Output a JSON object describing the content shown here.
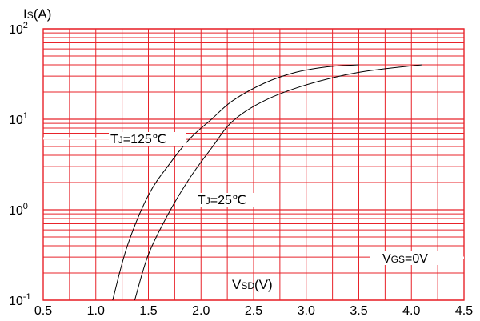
{
  "chart_data": {
    "type": "line",
    "xlabel": {
      "main": "V",
      "sub": "SD",
      "unit": "(V)"
    },
    "ylabel": {
      "main": "I",
      "sub": "S",
      "unit": "(A)"
    },
    "xlim": [
      0.5,
      4.5
    ],
    "ylim": [
      0.1,
      100
    ],
    "yscale": "log",
    "x_ticks": [
      "0.5",
      "1.0",
      "1.5",
      "2.0",
      "2.5",
      "3.0",
      "3.5",
      "4.0",
      "4.5"
    ],
    "y_ticks": [
      {
        "base": "10",
        "exp": "-1"
      },
      {
        "base": "10",
        "exp": "0"
      },
      {
        "base": "10",
        "exp": "1"
      },
      {
        "base": "10",
        "exp": "2"
      }
    ],
    "grid": true,
    "grid_color": "#e8232a",
    "line_color": "#000000",
    "series": [
      {
        "x": [
          1.16,
          1.3,
          1.5,
          1.7,
          1.9,
          2.1,
          2.3,
          2.6,
          2.9,
          3.2,
          3.5
        ],
        "y": [
          0.1,
          0.4,
          1.45,
          3.2,
          6.2,
          10,
          16,
          25,
          33,
          38,
          40
        ]
      },
      {
        "x": [
          1.37,
          1.5,
          1.7,
          1.9,
          2.1,
          2.3,
          2.6,
          3.0,
          3.5,
          4.1
        ],
        "y": [
          0.1,
          0.32,
          0.95,
          2.3,
          4.8,
          9.5,
          16,
          24,
          33,
          40
        ]
      }
    ],
    "annotations": [
      {
        "id": "tj125",
        "main": "T",
        "sub": "J",
        "rest": "=125℃"
      },
      {
        "id": "tj25",
        "main": "T",
        "sub": "J",
        "rest": "=25℃"
      },
      {
        "id": "vgs",
        "main": "V",
        "sub": "GS",
        "rest": "=0V"
      }
    ]
  }
}
